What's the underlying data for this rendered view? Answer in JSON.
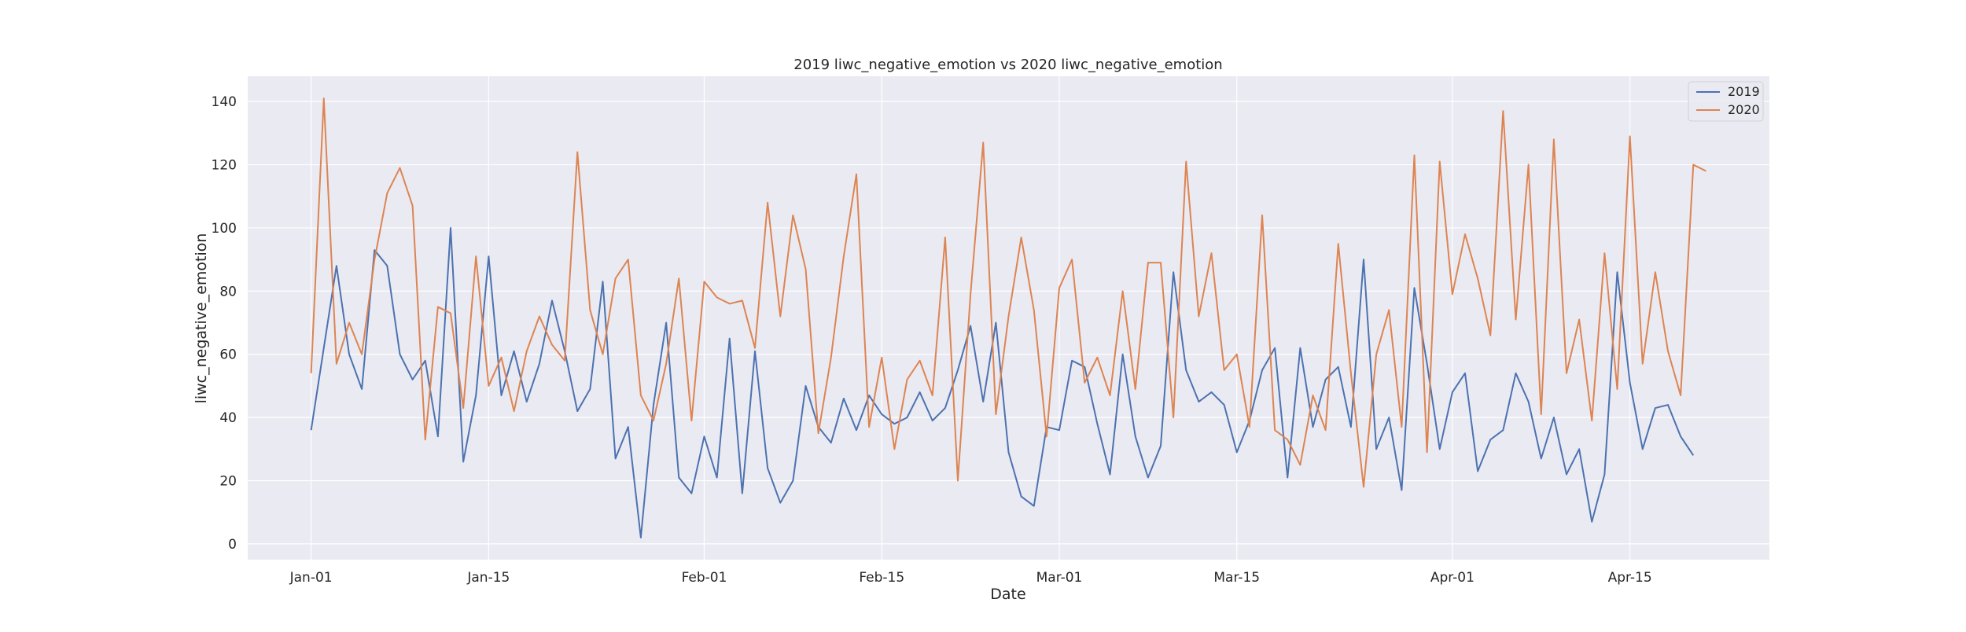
{
  "chart_data": {
    "type": "line",
    "title": "2019 liwc_negative_emotion vs 2020 liwc_negative_emotion",
    "xlabel": "Date",
    "ylabel": "liwc_negative_emotion",
    "x_start": "Jan-01",
    "x_ticks": [
      {
        "label": "Jan-01",
        "day": 0
      },
      {
        "label": "Jan-15",
        "day": 14
      },
      {
        "label": "Feb-01",
        "day": 31
      },
      {
        "label": "Feb-15",
        "day": 45
      },
      {
        "label": "Mar-01",
        "day": 59
      },
      {
        "label": "Mar-15",
        "day": 73
      },
      {
        "label": "Apr-01",
        "day": 90
      },
      {
        "label": "Apr-15",
        "day": 104
      }
    ],
    "xlim_days": [
      -5,
      115
    ],
    "ylim": [
      -5,
      148
    ],
    "y_ticks": [
      0,
      20,
      40,
      60,
      80,
      100,
      120,
      140
    ],
    "grid": true,
    "legend_position": "top-right",
    "series": [
      {
        "name": "2019",
        "color": "#4c72b0",
        "values": [
          36,
          62,
          88,
          60,
          49,
          93,
          88,
          60,
          52,
          58,
          34,
          100,
          26,
          47,
          91,
          47,
          61,
          45,
          57,
          77,
          61,
          42,
          49,
          83,
          27,
          37,
          2,
          44,
          70,
          21,
          16,
          34,
          21,
          65,
          16,
          61,
          24,
          13,
          20,
          50,
          37,
          32,
          46,
          36,
          47,
          41,
          38,
          40,
          48,
          39,
          43,
          55,
          69,
          45,
          70,
          29,
          15,
          12,
          37,
          36,
          58,
          56,
          38,
          22,
          60,
          34,
          21,
          31,
          86,
          55,
          45,
          48,
          44,
          29,
          39,
          55,
          62,
          21,
          62,
          37,
          52,
          56,
          37,
          90,
          30,
          40,
          17,
          81,
          57,
          30,
          48,
          54,
          23,
          33,
          36,
          54,
          45,
          27,
          40,
          22,
          30,
          7,
          22,
          86,
          51,
          30,
          43,
          44,
          34,
          28
        ]
      },
      {
        "name": "2020",
        "color": "#dd8452",
        "values": [
          54,
          141,
          57,
          70,
          60,
          90,
          111,
          119,
          107,
          33,
          75,
          73,
          43,
          91,
          50,
          59,
          42,
          61,
          72,
          63,
          58,
          124,
          74,
          60,
          84,
          90,
          47,
          39,
          57,
          84,
          39,
          83,
          78,
          76,
          77,
          62,
          108,
          72,
          104,
          87,
          35,
          59,
          91,
          117,
          37,
          59,
          30,
          52,
          58,
          47,
          97,
          20,
          79,
          127,
          41,
          72,
          97,
          74,
          34,
          81,
          90,
          51,
          59,
          47,
          80,
          49,
          89,
          89,
          40,
          121,
          72,
          92,
          55,
          60,
          37,
          104,
          36,
          33,
          25,
          47,
          36,
          95,
          54,
          18,
          60,
          74,
          37,
          123,
          29,
          121,
          79,
          98,
          84,
          66,
          137,
          71,
          120,
          41,
          128,
          54,
          71,
          39,
          92,
          49,
          129,
          57,
          86,
          61,
          47,
          120,
          118
        ]
      }
    ]
  }
}
